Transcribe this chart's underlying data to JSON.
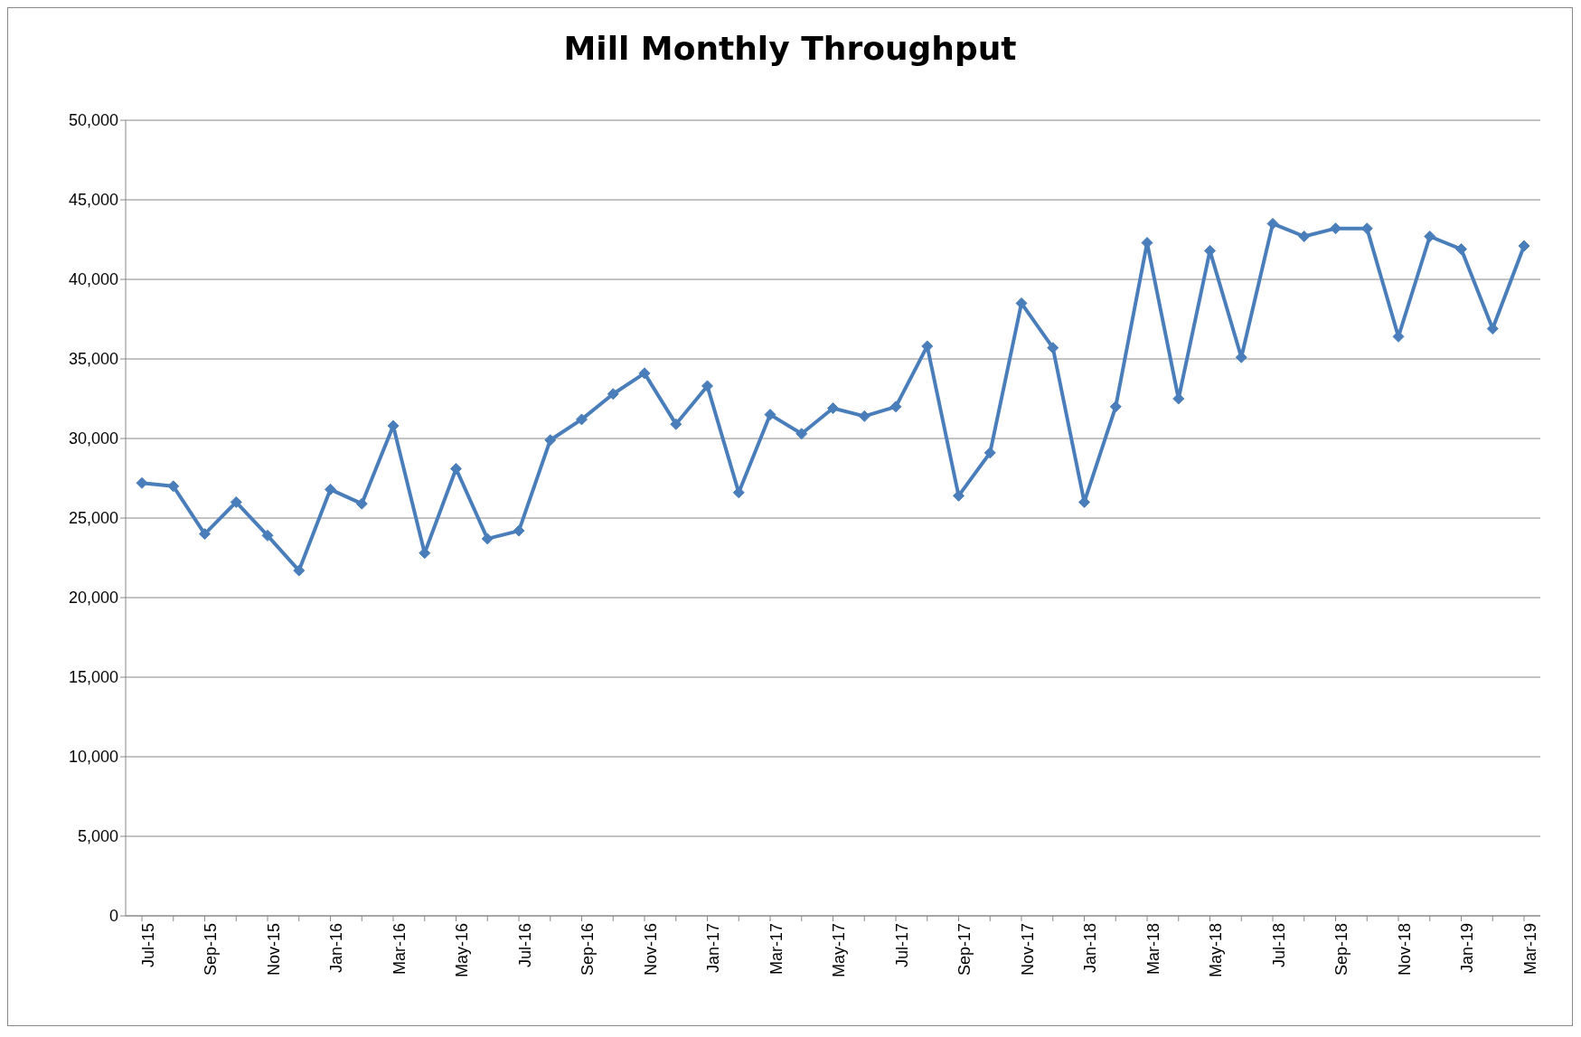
{
  "chart_data": {
    "type": "line",
    "title": "Mill Monthly Throughput",
    "categories": [
      "Jul-15",
      null,
      "Sep-15",
      null,
      "Nov-15",
      null,
      "Jan-16",
      null,
      "Mar-16",
      null,
      "May-16",
      null,
      "Jul-16",
      null,
      "Sep-16",
      null,
      "Nov-16",
      null,
      "Jan-17",
      null,
      "Mar-17",
      null,
      "May-17",
      null,
      "Jul-17",
      null,
      "Sep-17",
      null,
      "Nov-17",
      null,
      "Jan-18",
      null,
      "Mar-18",
      null,
      "May-18",
      null,
      "Jul-18",
      null,
      "Sep-18",
      null,
      "Nov-18",
      null,
      "Jan-19",
      null,
      "Mar-19"
    ],
    "series": [
      {
        "color": "#4a7ebb",
        "values": [
          27200,
          27000,
          24000,
          26000,
          23900,
          21700,
          26800,
          25900,
          30800,
          22800,
          28100,
          23700,
          24200,
          29900,
          31200,
          32800,
          34100,
          30900,
          33300,
          26600,
          31500,
          30300,
          31900,
          31400,
          32000,
          35800,
          26400,
          29100,
          38500,
          35700,
          26000,
          32000,
          42300,
          32500,
          41800,
          35100,
          43500,
          42700,
          43200,
          43200,
          36400,
          42700,
          41900,
          36900,
          42100
        ]
      }
    ],
    "ylim": [
      0,
      50000
    ],
    "yticks": [
      {
        "value": 0,
        "label": "0"
      },
      {
        "value": 5000,
        "label": "5,000"
      },
      {
        "value": 10000,
        "label": "10,000"
      },
      {
        "value": 15000,
        "label": "15,000"
      },
      {
        "value": 20000,
        "label": "20,000"
      },
      {
        "value": 25000,
        "label": "25,000"
      },
      {
        "value": 30000,
        "label": "30,000"
      },
      {
        "value": 35000,
        "label": "35,000"
      },
      {
        "value": 40000,
        "label": "40,000"
      },
      {
        "value": 45000,
        "label": "45,000"
      },
      {
        "value": 50000,
        "label": "50,000"
      }
    ],
    "grid": "y",
    "marker": "diamond",
    "line_style": "solid"
  }
}
